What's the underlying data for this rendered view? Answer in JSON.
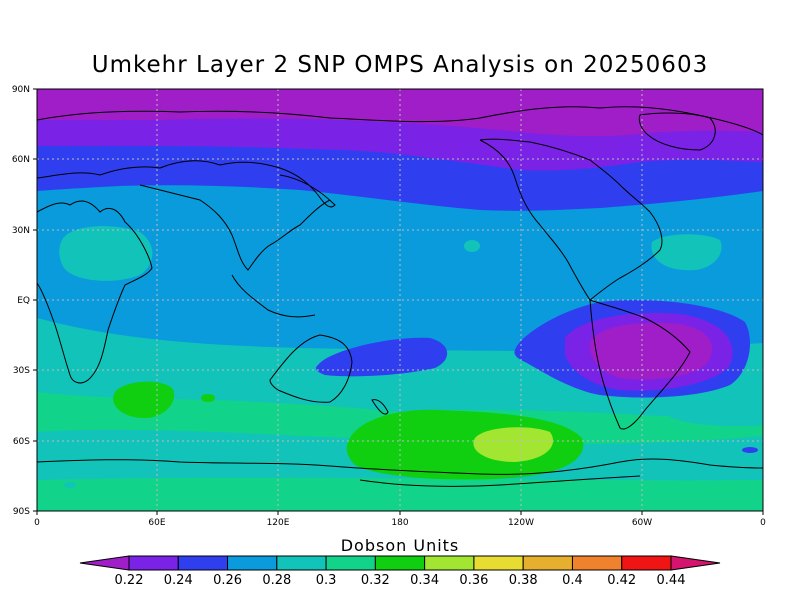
{
  "title": "Umkehr Layer 2 SNP OMPS Analysis on 20250603",
  "map": {
    "lat_labels": [
      "90N",
      "60N",
      "30N",
      "EQ",
      "30S",
      "60S",
      "90S"
    ],
    "lon_labels": [
      "0",
      "60E",
      "120E",
      "180",
      "120W",
      "60W",
      "0"
    ],
    "grid": true
  },
  "colorbar": {
    "title": "Dobson Units",
    "levels": [
      "0.22",
      "0.24",
      "0.26",
      "0.28",
      "0.3",
      "0.32",
      "0.34",
      "0.36",
      "0.38",
      "0.4",
      "0.42",
      "0.44"
    ],
    "colors": [
      "#a01ec8",
      "#7a22e6",
      "#2f3ff0",
      "#0a9bdc",
      "#12c3b9",
      "#12d38a",
      "#10cf10",
      "#a3e632",
      "#e6dc32",
      "#e6af2d",
      "#f0822d",
      "#f01414",
      "#d4146e"
    ]
  }
}
